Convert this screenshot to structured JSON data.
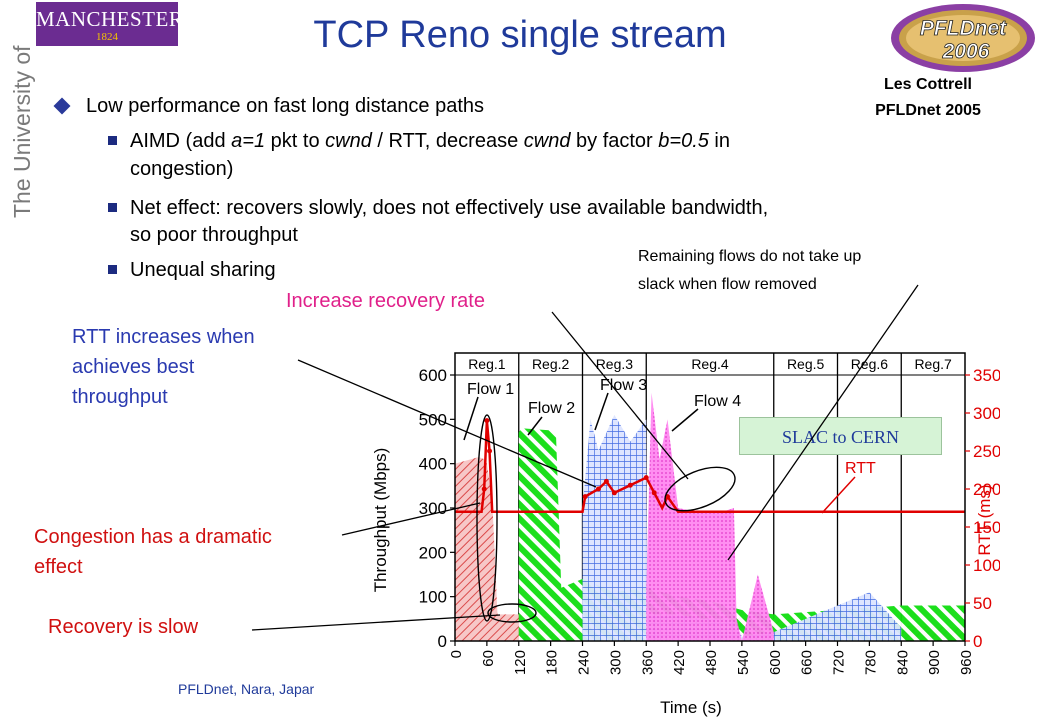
{
  "logo": {
    "name": "MANCHESTER",
    "year": "1824",
    "university_vertical": "The University of Manchester"
  },
  "badge": {
    "line1": "PFLDnet",
    "line2": "2006"
  },
  "title": "TCP Reno single stream",
  "author": {
    "name": "Les Cottrell",
    "event": "PFLDnet 2005"
  },
  "bullets": {
    "main": "Low performance on fast long distance paths",
    "aimd_a": "AIMD (add ",
    "aimd_b": "a=1",
    "aimd_c": " pkt to ",
    "aimd_d": "cwnd",
    "aimd_e": " / RTT, decrease ",
    "aimd_f": "cwnd",
    "aimd_g": " by factor ",
    "aimd_h": "b=0.5",
    "aimd_i": " in",
    "aimd_line2": "congestion)",
    "net_line1": "Net effect: recovers slowly, does not effectively use available bandwidth,",
    "net_line2": "so poor throughput",
    "unequal": "Unequal sharing"
  },
  "annotations": {
    "remaining_1": "Remaining flows do not take up",
    "remaining_2": "slack when flow removed",
    "increase": "Increase recovery rate",
    "rtt_1": "RTT increases when",
    "rtt_2": "achieves best",
    "rtt_3": "throughput",
    "congestion_1": "Congestion has a dramatic",
    "congestion_2": "effect",
    "recovery": "Recovery is slow",
    "slac": "SLAC to CERN"
  },
  "footer": "PFLDnet, Nara, Japar",
  "colors": {
    "flow1": "#e06060",
    "flow2": "#00dd00",
    "flow3": "#3a64e0",
    "flow4": "#ff66ee",
    "rtt": "#e00000",
    "title": "#1f3a9a",
    "pink": "#e0208a",
    "annotation_red": "#d01010"
  },
  "chart_data": {
    "type": "area",
    "xlabel": "Time (s)",
    "ylabel_left": "Throughput (Mbps)",
    "ylabel_right": "RTT (ms)",
    "xlim": [
      0,
      960
    ],
    "ylim_left": [
      0,
      600
    ],
    "ylim_right": [
      0,
      350
    ],
    "x_ticks": [
      "0",
      "60",
      "120",
      "180",
      "240",
      "300",
      "360",
      "420",
      "480",
      "540",
      "600",
      "660",
      "720",
      "780",
      "840",
      "900",
      "960"
    ],
    "y_ticks_left": [
      "0",
      "100",
      "200",
      "300",
      "400",
      "500",
      "600"
    ],
    "y_ticks_right": [
      "0",
      "50",
      "100",
      "150",
      "200",
      "250",
      "300",
      "350"
    ],
    "regions": [
      "Reg.1",
      "Reg.2",
      "Reg.3",
      "Reg.4",
      "Reg.5",
      "Reg.6",
      "Reg.7"
    ],
    "region_bounds": [
      0,
      120,
      240,
      360,
      600,
      720,
      840,
      960
    ],
    "series": [
      {
        "name": "Flow 1",
        "color": "#e06060",
        "x": [
          0,
          15,
          30,
          45,
          55,
          60,
          70,
          80,
          120,
          240,
          360,
          480,
          600,
          720,
          840,
          960
        ],
        "y": [
          400,
          405,
          410,
          415,
          410,
          400,
          320,
          60,
          60,
          50,
          50,
          55,
          50,
          40,
          35,
          30
        ]
      },
      {
        "name": "Flow 2",
        "color": "#00dd00",
        "x": [
          120,
          125,
          180,
          190,
          200,
          240,
          300,
          360,
          420,
          480,
          540,
          600,
          660,
          720,
          780,
          840,
          960
        ],
        "y": [
          470,
          480,
          475,
          470,
          120,
          140,
          110,
          120,
          100,
          90,
          70,
          60,
          65,
          70,
          75,
          80,
          80
        ]
      },
      {
        "name": "Flow 3",
        "color": "#3a64e0",
        "x": [
          240,
          255,
          270,
          300,
          330,
          360,
          362,
          380,
          420,
          460,
          500,
          525,
          540,
          600,
          660,
          720,
          780,
          840
        ],
        "y": [
          300,
          500,
          430,
          510,
          450,
          500,
          60,
          60,
          60,
          50,
          50,
          45,
          10,
          20,
          50,
          80,
          110,
          30
        ]
      },
      {
        "name": "Flow 4",
        "color": "#ff66ee",
        "x": [
          360,
          370,
          385,
          400,
          420,
          460,
          500,
          525,
          530,
          540,
          570,
          600
        ],
        "y": [
          120,
          560,
          410,
          500,
          300,
          290,
          290,
          300,
          50,
          0,
          150,
          20
        ]
      },
      {
        "name": "RTT",
        "color": "#e00000",
        "axis": "right",
        "x": [
          0,
          50,
          55,
          60,
          65,
          70,
          80,
          120,
          240,
          245,
          270,
          285,
          300,
          330,
          360,
          375,
          390,
          400,
          420,
          480,
          540,
          600,
          720,
          840,
          960
        ],
        "y": [
          170,
          170,
          200,
          290,
          250,
          170,
          170,
          170,
          170,
          190,
          200,
          210,
          195,
          205,
          215,
          195,
          175,
          190,
          170,
          170,
          170,
          170,
          170,
          170,
          170
        ]
      }
    ]
  }
}
